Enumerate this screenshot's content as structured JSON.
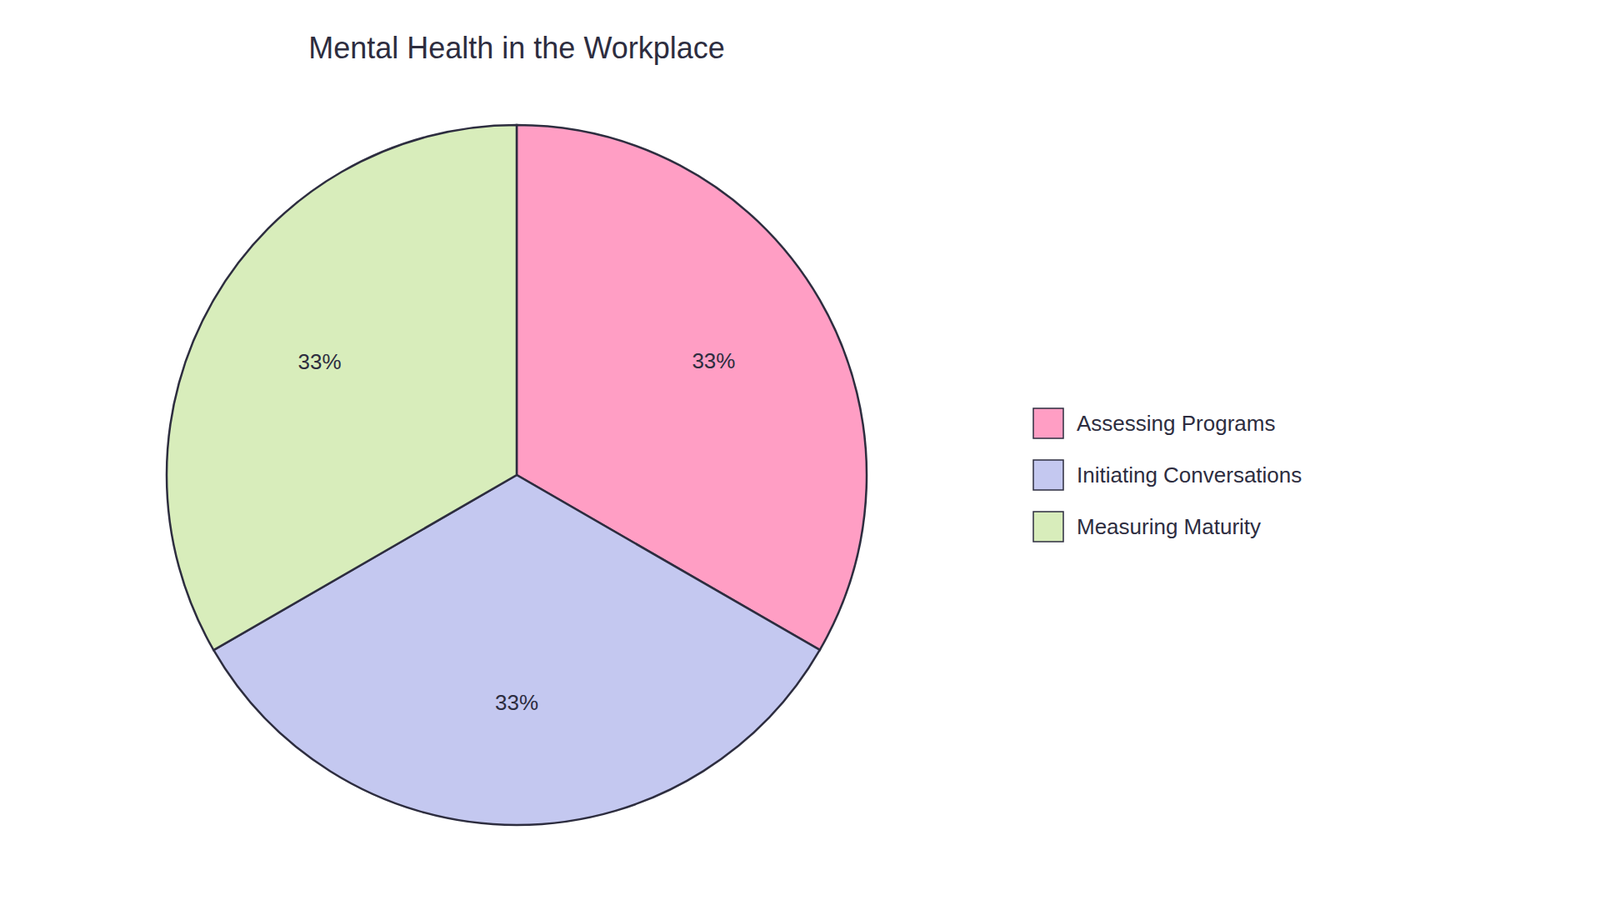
{
  "chart_data": {
    "type": "pie",
    "title": "Mental Health in the Workplace",
    "categories": [
      "Assessing Programs",
      "Initiating Conversations",
      "Measuring Maturity"
    ],
    "values": [
      33.33,
      33.33,
      33.34
    ],
    "value_labels": [
      "33%",
      "33%",
      "33%"
    ],
    "data_labels": true,
    "colors": [
      "#FF9EC4",
      "#C4C8F0",
      "#D8EDBB"
    ],
    "legend": "right"
  }
}
